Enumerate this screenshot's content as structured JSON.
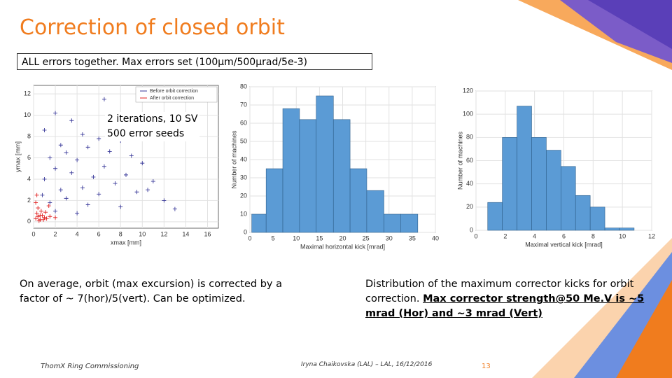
{
  "title": "Correction of closed orbit",
  "subtitle": "ALL errors together. Max errors set (100µm/500µrad/5e-3)",
  "annotation": [
    "2 iterations, 10 SV",
    "500 error seeds"
  ],
  "left_text": "On average, orbit (max excursion) is corrected by a factor of  ~ 7(hor)/5(vert). Can be optimized.",
  "right_text": {
    "plain": "Distribution of the maximum corrector kicks for orbit correction.",
    "underlined": "Max corrector strength@50 Me.V is ~5 mrad (Hor) and ~3 mrad (Vert)"
  },
  "footer": {
    "left": "ThomX Ring Commissioning",
    "center": "Iryna Chaikovska (LAL) – LAL, 16/12/2016",
    "page": "13"
  },
  "chart_data": [
    {
      "type": "scatter",
      "xlabel": "xmax [mm]",
      "ylabel": "ymax [mm]",
      "xlim": [
        0,
        17
      ],
      "ylim": [
        -0.6,
        12.8
      ],
      "xticks": [
        0,
        2,
        4,
        6,
        8,
        10,
        12,
        14,
        16
      ],
      "yticks": [
        0,
        2,
        4,
        6,
        8,
        10,
        12
      ],
      "grid": true,
      "legend": "upper right",
      "series": [
        {
          "name": "Before orbit correction",
          "color": "#3a3a9a",
          "x": [
            2,
            3.5,
            1,
            4.5,
            6,
            8,
            2.5,
            5,
            3,
            7,
            9,
            1.5,
            4,
            10,
            6.5,
            2,
            3.5,
            8.5,
            5.5,
            1,
            11,
            7.5,
            4.5,
            2.5,
            9.5,
            6,
            3,
            12,
            1.5,
            5,
            8,
            2,
            10.5,
            13,
            0.8,
            4,
            7,
            6.5
          ],
          "y": [
            10.2,
            9.5,
            8.6,
            8.2,
            7.8,
            7.6,
            7.2,
            7,
            6.5,
            6.6,
            6.2,
            6,
            5.8,
            5.5,
            5.2,
            5,
            4.6,
            4.4,
            4.2,
            4,
            3.8,
            3.6,
            3.2,
            3,
            2.8,
            2.6,
            2.2,
            2,
            1.8,
            1.6,
            1.4,
            1,
            3,
            1.2,
            2.5,
            0.8,
            9.8,
            11.5
          ]
        },
        {
          "name": "After orbit correction",
          "color": "#e02020",
          "x": [
            0.2,
            0.4,
            0.6,
            0.8,
            1,
            0.3,
            0.5,
            1.2,
            0.7,
            0.9,
            1.5,
            0.4,
            1.1,
            0.6,
            2,
            0.2,
            1.4,
            0.3
          ],
          "y": [
            0.3,
            0.5,
            0.2,
            0.6,
            0.4,
            0.8,
            0.1,
            0.3,
            1,
            0.2,
            0.5,
            1.3,
            0.9,
            0.6,
            0.4,
            1.8,
            1.5,
            2.5
          ]
        }
      ]
    },
    {
      "type": "histogram",
      "xlabel": "Maximal horizontal kick [mrad]",
      "ylabel": "Number of machines",
      "color": "#5b9bd5",
      "bins": [
        0.4,
        3.5,
        7.1,
        10.7,
        14.3,
        18,
        21.6,
        25.2,
        28.9,
        32.5,
        36.2
      ],
      "values": [
        10,
        35,
        68,
        62,
        75,
        62,
        35,
        23,
        10,
        10
      ],
      "xlim": [
        0,
        40
      ],
      "ylim": [
        0,
        80
      ],
      "xticks": [
        0,
        5,
        10,
        15,
        20,
        25,
        30,
        35,
        40
      ],
      "yticks": [
        0,
        10,
        20,
        30,
        40,
        50,
        60,
        70,
        80
      ],
      "grid": true
    },
    {
      "type": "histogram",
      "xlabel": "Maximal vertical kick [mrad]",
      "ylabel": "Number of machines",
      "color": "#5b9bd5",
      "bins": [
        0.8,
        1.8,
        2.8,
        3.8,
        4.8,
        5.8,
        6.8,
        7.8,
        8.8,
        9.8,
        10.8
      ],
      "values": [
        24,
        80,
        107,
        80,
        69,
        55,
        30,
        20,
        2,
        2
      ],
      "xlim": [
        0,
        12
      ],
      "ylim": [
        0,
        120
      ],
      "xticks": [
        0,
        2,
        4,
        6,
        8,
        10,
        12
      ],
      "yticks": [
        0,
        20,
        40,
        60,
        80,
        100,
        120
      ],
      "grid": true
    }
  ]
}
